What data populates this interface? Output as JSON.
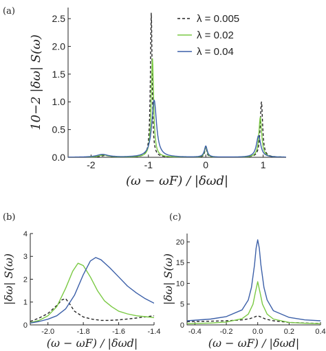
{
  "colors": {
    "dashed": "#222222",
    "green": "#7ac943",
    "blue": "#3b5fa8"
  },
  "chart_data": [
    {
      "panel": "(a)",
      "type": "line",
      "xlabel": "(ω − ωF) / |δωd|",
      "ylabel": "10−2 |δω| S(ω)",
      "xlim": [
        -2.4,
        1.4
      ],
      "ylim": [
        0,
        2.7
      ],
      "xticks": [
        "-2",
        "-1",
        "0",
        "1"
      ],
      "yticks": [
        "0.0",
        "0.5",
        "1.0",
        "1.5",
        "2.0",
        "2.5"
      ],
      "legend_position": "top-right",
      "series": [
        {
          "name": "λ = 0.005",
          "style": "dashed",
          "peaks": [
            {
              "x": -1.75,
              "height": 0.03,
              "width": 0.1
            },
            {
              "x": -0.95,
              "height": 2.6,
              "width": 0.018
            },
            {
              "x": 0.0,
              "height": 0.19,
              "width": 0.02
            },
            {
              "x": 0.97,
              "height": 1.0,
              "width": 0.025
            }
          ]
        },
        {
          "name": "λ = 0.02",
          "style": "solid",
          "peaks": [
            {
              "x": -1.78,
              "height": 0.04,
              "width": 0.1
            },
            {
              "x": -0.93,
              "height": 1.78,
              "width": 0.025
            },
            {
              "x": 0.0,
              "height": 0.2,
              "width": 0.025
            },
            {
              "x": 0.95,
              "height": 0.72,
              "width": 0.03
            }
          ]
        },
        {
          "name": "λ = 0.04",
          "style": "solid",
          "peaks": [
            {
              "x": -1.8,
              "height": 0.05,
              "width": 0.12
            },
            {
              "x": -0.9,
              "height": 1.03,
              "width": 0.05
            },
            {
              "x": 0.0,
              "height": 0.2,
              "width": 0.03
            },
            {
              "x": 0.92,
              "height": 0.39,
              "width": 0.045
            }
          ]
        }
      ]
    },
    {
      "panel": "(b)",
      "type": "line",
      "xlabel": "(ω − ωF) / |δωd|",
      "ylabel": "|δω| S(ω)",
      "xlim": [
        -2.1,
        -1.4
      ],
      "ylim": [
        0,
        4
      ],
      "xticks": [
        "-2.0",
        "-1.8",
        "-1.6",
        "-1.4"
      ],
      "yticks": [
        "0",
        "1",
        "2",
        "3",
        "4"
      ],
      "series": [
        {
          "style": "dashed",
          "x": [
            -2.1,
            -2.05,
            -2.0,
            -1.95,
            -1.92,
            -1.9,
            -1.88,
            -1.85,
            -1.8,
            -1.75,
            -1.7,
            -1.65,
            -1.6,
            -1.55,
            -1.5,
            -1.45,
            -1.4
          ],
          "y": [
            0.15,
            0.3,
            0.5,
            0.85,
            1.1,
            1.15,
            0.95,
            0.6,
            0.35,
            0.25,
            0.2,
            0.2,
            0.22,
            0.26,
            0.3,
            0.35,
            0.4
          ]
        },
        {
          "style": "solid",
          "x": [
            -2.1,
            -2.05,
            -2.0,
            -1.95,
            -1.9,
            -1.86,
            -1.83,
            -1.8,
            -1.76,
            -1.72,
            -1.68,
            -1.64,
            -1.6,
            -1.55,
            -1.5,
            -1.45,
            -1.4
          ],
          "y": [
            0.1,
            0.2,
            0.4,
            0.8,
            1.6,
            2.35,
            2.7,
            2.6,
            2.1,
            1.5,
            1.05,
            0.8,
            0.6,
            0.48,
            0.4,
            0.36,
            0.32
          ]
        },
        {
          "style": "solid",
          "x": [
            -2.1,
            -2.05,
            -2.0,
            -1.95,
            -1.9,
            -1.85,
            -1.8,
            -1.76,
            -1.73,
            -1.7,
            -1.65,
            -1.6,
            -1.55,
            -1.5,
            -1.45,
            -1.4
          ],
          "y": [
            0.08,
            0.15,
            0.25,
            0.4,
            0.7,
            1.3,
            2.2,
            2.8,
            2.95,
            2.85,
            2.5,
            2.1,
            1.7,
            1.4,
            1.15,
            0.95
          ]
        }
      ]
    },
    {
      "panel": "(c)",
      "type": "line",
      "xlabel": "(ω − ωF) / |δωd|",
      "ylabel": "|δω| S(ω)",
      "xlim": [
        -0.45,
        0.4
      ],
      "ylim": [
        0,
        22
      ],
      "xticks": [
        "-0.4",
        "-0.2",
        "0.0",
        "0.2",
        "0.4"
      ],
      "yticks": [
        "0",
        "5",
        "10",
        "15",
        "20"
      ],
      "series": [
        {
          "style": "dashed",
          "x": [
            -0.45,
            -0.3,
            -0.2,
            -0.1,
            -0.05,
            -0.02,
            0.0,
            0.02,
            0.05,
            0.1,
            0.2,
            0.3,
            0.4
          ],
          "y": [
            0.8,
            0.9,
            1.0,
            1.2,
            1.5,
            1.9,
            2.2,
            1.9,
            1.4,
            1.0,
            0.6,
            0.45,
            0.35
          ]
        },
        {
          "style": "solid",
          "x": [
            -0.45,
            -0.3,
            -0.2,
            -0.1,
            -0.06,
            -0.03,
            -0.015,
            0.0,
            0.015,
            0.03,
            0.06,
            0.1,
            0.2,
            0.3,
            0.4
          ],
          "y": [
            0.3,
            0.45,
            0.7,
            1.5,
            2.6,
            5.0,
            7.8,
            10.4,
            7.8,
            5.0,
            2.6,
            1.4,
            0.6,
            0.4,
            0.3
          ]
        },
        {
          "style": "solid",
          "x": [
            -0.45,
            -0.3,
            -0.2,
            -0.1,
            -0.06,
            -0.04,
            -0.02,
            -0.01,
            0.0,
            0.01,
            0.02,
            0.04,
            0.06,
            0.1,
            0.2,
            0.3,
            0.4
          ],
          "y": [
            1.0,
            1.4,
            2.0,
            3.6,
            6.0,
            9.0,
            14.5,
            18.5,
            20.5,
            18.5,
            14.5,
            9.0,
            6.0,
            3.4,
            1.8,
            1.2,
            1.0
          ]
        }
      ]
    }
  ]
}
